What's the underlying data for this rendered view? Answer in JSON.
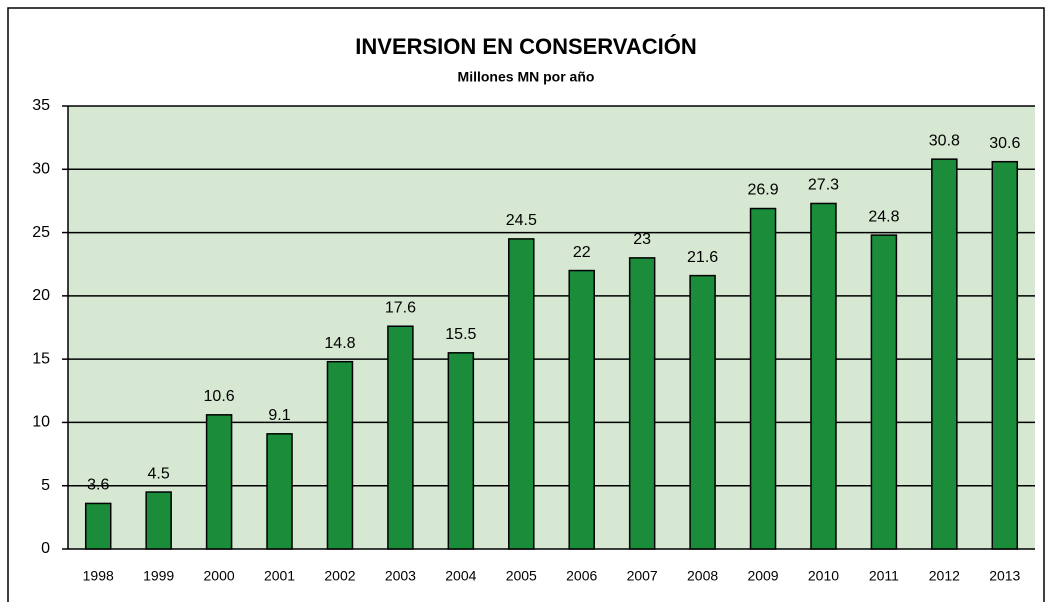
{
  "chart_data": {
    "type": "bar",
    "title": "INVERSION EN CONSERVACIÓN",
    "subtitle": "Millones MN por año",
    "categories": [
      "1998",
      "1999",
      "2000",
      "2001",
      "2002",
      "2003",
      "2004",
      "2005",
      "2006",
      "2007",
      "2008",
      "2009",
      "2010",
      "2011",
      "2012",
      "2013"
    ],
    "values": [
      3.6,
      4.5,
      10.6,
      9.1,
      14.8,
      17.6,
      15.5,
      24.5,
      22,
      23,
      21.6,
      26.9,
      27.3,
      24.8,
      30.8,
      30.6
    ],
    "color": "#1a8c3a",
    "ylim": [
      0,
      35
    ],
    "yticks": [
      0,
      5,
      10,
      15,
      20,
      25,
      30,
      35
    ],
    "grid": true
  }
}
